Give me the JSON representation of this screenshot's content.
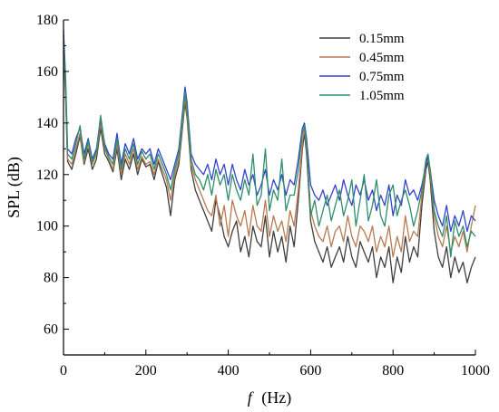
{
  "chart_data": {
    "type": "line",
    "xlabel_italic": "f",
    "xlabel_unit": "(Hz)",
    "ylabel": "SPL (dB)",
    "xlim": [
      0,
      1000
    ],
    "ylim": [
      50,
      180
    ],
    "xticks": [
      0,
      200,
      400,
      600,
      800,
      1000
    ],
    "yticks": [
      60,
      80,
      100,
      120,
      140,
      160,
      180
    ],
    "grid": false,
    "legend_position": "top-right",
    "series": [
      {
        "name": "0.15mm",
        "color": "#3f3f3f",
        "x": [
          0,
          5,
          10,
          20,
          30,
          40,
          50,
          60,
          70,
          80,
          90,
          100,
          110,
          120,
          130,
          140,
          150,
          160,
          170,
          180,
          190,
          200,
          210,
          220,
          230,
          240,
          250,
          260,
          270,
          280,
          290,
          295,
          300,
          310,
          320,
          330,
          340,
          350,
          360,
          370,
          380,
          390,
          400,
          410,
          420,
          430,
          440,
          450,
          460,
          470,
          480,
          490,
          500,
          510,
          520,
          530,
          540,
          550,
          560,
          570,
          580,
          585,
          590,
          600,
          610,
          620,
          630,
          640,
          650,
          660,
          670,
          680,
          690,
          700,
          710,
          720,
          730,
          740,
          750,
          760,
          770,
          780,
          790,
          800,
          810,
          820,
          830,
          840,
          850,
          860,
          870,
          880,
          885,
          890,
          900,
          910,
          920,
          930,
          940,
          950,
          960,
          970,
          980,
          990,
          1000
        ],
        "values": [
          168,
          150,
          125,
          122,
          128,
          135,
          124,
          130,
          122,
          126,
          138,
          128,
          125,
          121,
          130,
          118,
          126,
          122,
          128,
          120,
          126,
          123,
          124,
          118,
          125,
          120,
          115,
          104,
          118,
          124,
          140,
          148,
          142,
          122,
          114,
          110,
          106,
          102,
          98,
          110,
          104,
          96,
          92,
          98,
          102,
          90,
          96,
          88,
          100,
          94,
          92,
          104,
          88,
          98,
          90,
          96,
          86,
          100,
          92,
          110,
          130,
          136,
          128,
          102,
          94,
          90,
          86,
          92,
          84,
          88,
          92,
          86,
          96,
          88,
          84,
          94,
          90,
          86,
          92,
          80,
          88,
          84,
          92,
          78,
          88,
          82,
          96,
          86,
          92,
          88,
          108,
          122,
          125,
          118,
          98,
          88,
          84,
          92,
          80,
          88,
          82,
          86,
          78,
          84,
          88
        ]
      },
      {
        "name": "0.45mm",
        "color": "#b87a50",
        "x": [
          0,
          5,
          10,
          20,
          30,
          40,
          50,
          60,
          70,
          80,
          90,
          100,
          110,
          120,
          130,
          140,
          150,
          160,
          170,
          180,
          190,
          200,
          210,
          220,
          230,
          240,
          250,
          260,
          270,
          280,
          290,
          295,
          300,
          310,
          320,
          330,
          340,
          350,
          360,
          370,
          380,
          390,
          400,
          410,
          420,
          430,
          440,
          450,
          460,
          470,
          480,
          490,
          500,
          510,
          520,
          530,
          540,
          550,
          560,
          570,
          580,
          585,
          590,
          600,
          610,
          620,
          630,
          640,
          650,
          660,
          670,
          680,
          690,
          700,
          710,
          720,
          730,
          740,
          750,
          760,
          770,
          780,
          790,
          800,
          810,
          820,
          830,
          840,
          850,
          860,
          870,
          880,
          885,
          890,
          900,
          910,
          920,
          930,
          940,
          950,
          960,
          970,
          980,
          990,
          1000
        ],
        "values": [
          172,
          152,
          126,
          124,
          130,
          136,
          125,
          132,
          124,
          128,
          140,
          130,
          126,
          122,
          132,
          120,
          128,
          124,
          130,
          122,
          127,
          124,
          125,
          120,
          126,
          122,
          118,
          110,
          120,
          126,
          142,
          150,
          144,
          124,
          118,
          114,
          110,
          106,
          104,
          112,
          100,
          108,
          96,
          110,
          104,
          100,
          106,
          96,
          108,
          100,
          98,
          110,
          96,
          104,
          98,
          102,
          94,
          106,
          100,
          114,
          132,
          138,
          130,
          106,
          100,
          96,
          94,
          100,
          92,
          98,
          100,
          94,
          104,
          96,
          92,
          100,
          98,
          94,
          100,
          90,
          96,
          92,
          100,
          88,
          96,
          90,
          104,
          94,
          98,
          96,
          112,
          124,
          126,
          120,
          104,
          96,
          92,
          100,
          90,
          96,
          92,
          98,
          90,
          100,
          108
        ]
      },
      {
        "name": "0.75mm",
        "color": "#3344cc",
        "x": [
          0,
          5,
          10,
          20,
          30,
          40,
          50,
          60,
          70,
          80,
          90,
          100,
          110,
          120,
          130,
          140,
          150,
          160,
          170,
          180,
          190,
          200,
          210,
          220,
          230,
          240,
          250,
          260,
          270,
          280,
          290,
          295,
          300,
          310,
          320,
          330,
          340,
          350,
          360,
          370,
          380,
          390,
          400,
          410,
          420,
          430,
          440,
          450,
          460,
          470,
          480,
          490,
          500,
          510,
          520,
          530,
          540,
          550,
          560,
          570,
          580,
          585,
          590,
          600,
          610,
          620,
          630,
          640,
          650,
          660,
          670,
          680,
          690,
          700,
          710,
          720,
          730,
          740,
          750,
          760,
          770,
          780,
          790,
          800,
          810,
          820,
          830,
          840,
          850,
          860,
          870,
          880,
          885,
          890,
          900,
          910,
          920,
          930,
          940,
          950,
          960,
          970,
          980,
          990,
          1000
        ],
        "values": [
          176,
          158,
          130,
          128,
          134,
          138,
          128,
          134,
          126,
          130,
          142,
          132,
          128,
          126,
          136,
          124,
          132,
          128,
          134,
          126,
          130,
          128,
          130,
          124,
          130,
          126,
          122,
          118,
          124,
          130,
          146,
          154,
          148,
          128,
          124,
          122,
          120,
          124,
          118,
          126,
          120,
          124,
          116,
          124,
          118,
          114,
          122,
          116,
          120,
          112,
          116,
          122,
          112,
          118,
          114,
          120,
          112,
          118,
          116,
          126,
          138,
          140,
          134,
          116,
          112,
          110,
          114,
          108,
          112,
          116,
          110,
          118,
          112,
          108,
          116,
          112,
          118,
          110,
          114,
          106,
          112,
          108,
          116,
          104,
          112,
          108,
          118,
          112,
          114,
          110,
          116,
          124,
          127,
          122,
          110,
          104,
          100,
          108,
          98,
          104,
          100,
          106,
          98,
          104,
          102
        ]
      },
      {
        "name": "1.05mm",
        "color": "#2e8f6a",
        "x": [
          0,
          5,
          10,
          20,
          30,
          40,
          50,
          60,
          70,
          80,
          90,
          100,
          110,
          120,
          130,
          140,
          150,
          160,
          170,
          180,
          190,
          200,
          210,
          220,
          230,
          240,
          250,
          260,
          270,
          280,
          290,
          295,
          300,
          310,
          320,
          330,
          340,
          350,
          360,
          370,
          380,
          390,
          400,
          410,
          420,
          430,
          440,
          450,
          460,
          470,
          480,
          490,
          500,
          510,
          520,
          530,
          540,
          550,
          560,
          570,
          580,
          585,
          590,
          600,
          610,
          620,
          630,
          640,
          650,
          660,
          670,
          680,
          690,
          700,
          710,
          720,
          730,
          740,
          750,
          760,
          770,
          780,
          790,
          800,
          810,
          820,
          830,
          840,
          850,
          860,
          870,
          880,
          885,
          890,
          900,
          910,
          920,
          930,
          940,
          950,
          960,
          970,
          980,
          990,
          1000
        ],
        "values": [
          174,
          155,
          128,
          126,
          132,
          139,
          126,
          133,
          125,
          129,
          143,
          131,
          127,
          124,
          134,
          122,
          130,
          126,
          132,
          124,
          129,
          126,
          128,
          122,
          128,
          124,
          120,
          114,
          122,
          128,
          144,
          152,
          146,
          126,
          120,
          118,
          114,
          120,
          112,
          122,
          116,
          120,
          110,
          120,
          114,
          110,
          118,
          112,
          128,
          108,
          112,
          130,
          106,
          114,
          110,
          126,
          106,
          112,
          112,
          122,
          136,
          139,
          132,
          104,
          110,
          100,
          106,
          112,
          102,
          108,
          114,
          104,
          110,
          118,
          100,
          110,
          120,
          102,
          108,
          118,
          104,
          100,
          112,
          116,
          104,
          110,
          114,
          108,
          100,
          106,
          114,
          126,
          128,
          122,
          106,
          100,
          96,
          104,
          88,
          102,
          96,
          100,
          92,
          98,
          96
        ]
      }
    ]
  }
}
